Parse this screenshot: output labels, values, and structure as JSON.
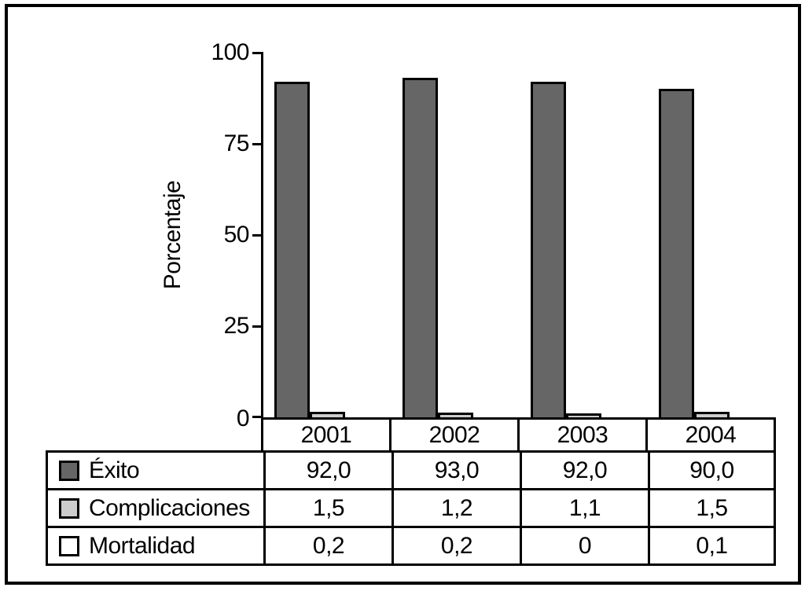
{
  "chart_data": {
    "type": "bar",
    "categories": [
      "2001",
      "2002",
      "2003",
      "2004"
    ],
    "series": [
      {
        "name": "Éxito",
        "values": [
          92.0,
          93.0,
          92.0,
          90.0
        ],
        "color": "#666666"
      },
      {
        "name": "Complicaciones",
        "values": [
          1.5,
          1.2,
          1.1,
          1.5
        ],
        "color": "#cccccc"
      },
      {
        "name": "Mortalidad",
        "values": [
          0.2,
          0.2,
          0,
          0.1
        ],
        "color": "#ffffff"
      }
    ],
    "title": "",
    "xlabel": "",
    "ylabel": "Porcentaje",
    "ylim": [
      0,
      100
    ],
    "yticks": [
      0,
      25,
      50,
      75,
      100
    ],
    "grid": false,
    "legend_position": "table-rows-below-chart"
  },
  "axis": {
    "label": "Porcentaje",
    "ticks": [
      "100",
      "75",
      "50",
      "25",
      "0"
    ]
  },
  "table": {
    "years": [
      "2001",
      "2002",
      "2003",
      "2004"
    ],
    "rows": [
      {
        "label": "Éxito",
        "swatch": "#666666",
        "values": [
          "92,0",
          "93,0",
          "92,0",
          "90,0"
        ]
      },
      {
        "label": "Complicaciones",
        "swatch": "#cccccc",
        "values": [
          "1,5",
          "1,2",
          "1,1",
          "1,5"
        ]
      },
      {
        "label": "Mortalidad",
        "swatch": "#ffffff",
        "values": [
          "0,2",
          "0,2",
          "0",
          "0,1"
        ]
      }
    ]
  },
  "colors": {
    "foreground": "#000000",
    "background": "#ffffff",
    "bar_exito": "#666666",
    "bar_complicaciones": "#cccccc",
    "bar_mortalidad": "#ffffff"
  }
}
